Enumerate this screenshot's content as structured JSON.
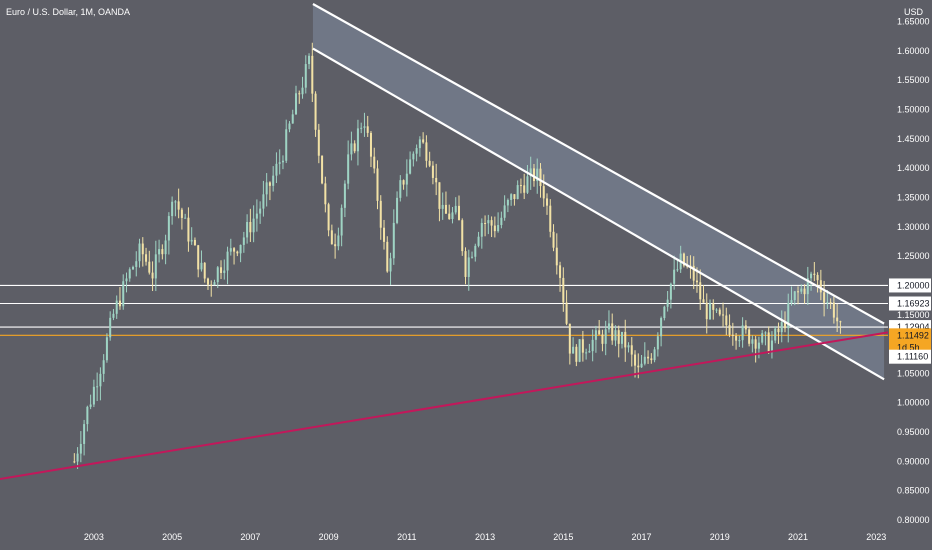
{
  "header": {
    "symbol_title": "Euro / U.S. Dollar, 1M, OANDA",
    "currency": "USD"
  },
  "chart_data": {
    "type": "candlestick",
    "title": "Euro / U.S. Dollar, 1M, OANDA",
    "ylabel": "USD",
    "ylim": [
      0.8,
      1.68
    ],
    "xlim": [
      2000.6,
      2023.3
    ],
    "y_ticks": [
      "1.65000",
      "1.60000",
      "1.55000",
      "1.50000",
      "1.45000",
      "1.40000",
      "1.35000",
      "1.30000",
      "1.25000",
      "1.20000",
      "1.15000",
      "1.10000",
      "1.05000",
      "1.00000",
      "0.95000",
      "0.90000",
      "0.85000",
      "0.80000"
    ],
    "x_ticks": [
      "2003",
      "2005",
      "2007",
      "2009",
      "2011",
      "2013",
      "2015",
      "2017",
      "2019",
      "2021",
      "2023"
    ],
    "price_path": [
      [
        2002.5,
        0.9
      ],
      [
        2002.8,
        0.98
      ],
      [
        2003.2,
        1.07
      ],
      [
        2003.5,
        1.15
      ],
      [
        2003.9,
        1.22
      ],
      [
        2004.2,
        1.26
      ],
      [
        2004.5,
        1.22
      ],
      [
        2004.9,
        1.3
      ],
      [
        2005.0,
        1.36
      ],
      [
        2005.4,
        1.29
      ],
      [
        2005.9,
        1.2
      ],
      [
        2006.3,
        1.24
      ],
      [
        2006.8,
        1.28
      ],
      [
        2007.3,
        1.34
      ],
      [
        2007.8,
        1.42
      ],
      [
        2008.2,
        1.52
      ],
      [
        2008.5,
        1.58
      ],
      [
        2008.8,
        1.4
      ],
      [
        2009.0,
        1.28
      ],
      [
        2009.2,
        1.28
      ],
      [
        2009.5,
        1.41
      ],
      [
        2009.9,
        1.49
      ],
      [
        2010.3,
        1.33
      ],
      [
        2010.5,
        1.22
      ],
      [
        2010.8,
        1.36
      ],
      [
        2011.3,
        1.45
      ],
      [
        2011.6,
        1.42
      ],
      [
        2011.9,
        1.32
      ],
      [
        2012.3,
        1.32
      ],
      [
        2012.5,
        1.23
      ],
      [
        2012.9,
        1.31
      ],
      [
        2013.3,
        1.3
      ],
      [
        2013.6,
        1.34
      ],
      [
        2013.9,
        1.37
      ],
      [
        2014.3,
        1.39
      ],
      [
        2014.5,
        1.36
      ],
      [
        2014.9,
        1.23
      ],
      [
        2015.2,
        1.08
      ],
      [
        2015.6,
        1.1
      ],
      [
        2016.2,
        1.12
      ],
      [
        2016.6,
        1.1
      ],
      [
        2016.9,
        1.05
      ],
      [
        2017.3,
        1.09
      ],
      [
        2017.6,
        1.18
      ],
      [
        2018.0,
        1.24
      ],
      [
        2018.3,
        1.22
      ],
      [
        2018.6,
        1.16
      ],
      [
        2019.0,
        1.14
      ],
      [
        2019.5,
        1.12
      ],
      [
        2019.9,
        1.11
      ],
      [
        2020.3,
        1.1
      ],
      [
        2020.6,
        1.13
      ],
      [
        2020.9,
        1.18
      ],
      [
        2021.2,
        1.2
      ],
      [
        2021.4,
        1.22
      ],
      [
        2021.7,
        1.18
      ],
      [
        2021.9,
        1.16
      ],
      [
        2022.1,
        1.12
      ]
    ],
    "horizontal_levels": [
      {
        "value": 1.2,
        "label": "1.20000",
        "color": "#ffffff"
      },
      {
        "value": 1.16923,
        "label": "1.16923",
        "color": "#ffffff"
      },
      {
        "value": 1.12904,
        "label": "1.12904",
        "color": "#ffffff"
      },
      {
        "value": 1.11492,
        "label": "1.11492",
        "color": "#f5a623"
      }
    ],
    "channel_upper_line": [
      [
        2008.6,
        1.68
      ],
      [
        2023.2,
        1.135
      ]
    ],
    "channel_lower_line": [
      [
        2008.6,
        1.604
      ],
      [
        2023.2,
        1.04
      ]
    ],
    "support_trendline": [
      [
        2000.6,
        0.87
      ],
      [
        2023.3,
        1.12
      ]
    ],
    "price_label": {
      "value": "1.11492",
      "countdown": "1d 5h"
    },
    "lower_label": {
      "value": "1.11160"
    },
    "colors": {
      "background": "#5d5e66",
      "up_candle": "#9fd4c4",
      "down_candle": "#f2e2a6",
      "channel_fill": "#7f8da0",
      "support_line": "#c2185b",
      "price_tag": "#f5a623"
    }
  }
}
